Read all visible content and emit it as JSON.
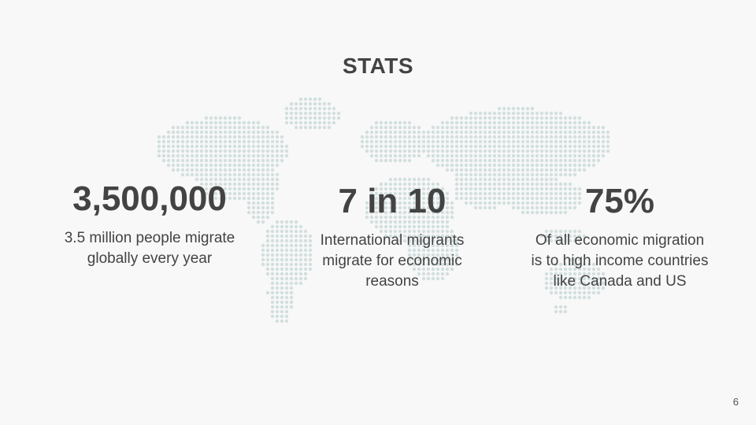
{
  "title": "STATS",
  "stats": [
    {
      "value": "3,500,000",
      "description": "3.5 million people migrate globally every year"
    },
    {
      "value": "7 in 10",
      "description": "International migrants migrate for economic reasons"
    },
    {
      "value": "75%",
      "description": "Of all economic migration is to high income countries like Canada and US"
    }
  ],
  "page_number": "6",
  "colors": {
    "background": "#f8f8f8",
    "text": "#434343",
    "map_dots": "#d3dfdf"
  },
  "background_graphic": "dotted-world-map"
}
